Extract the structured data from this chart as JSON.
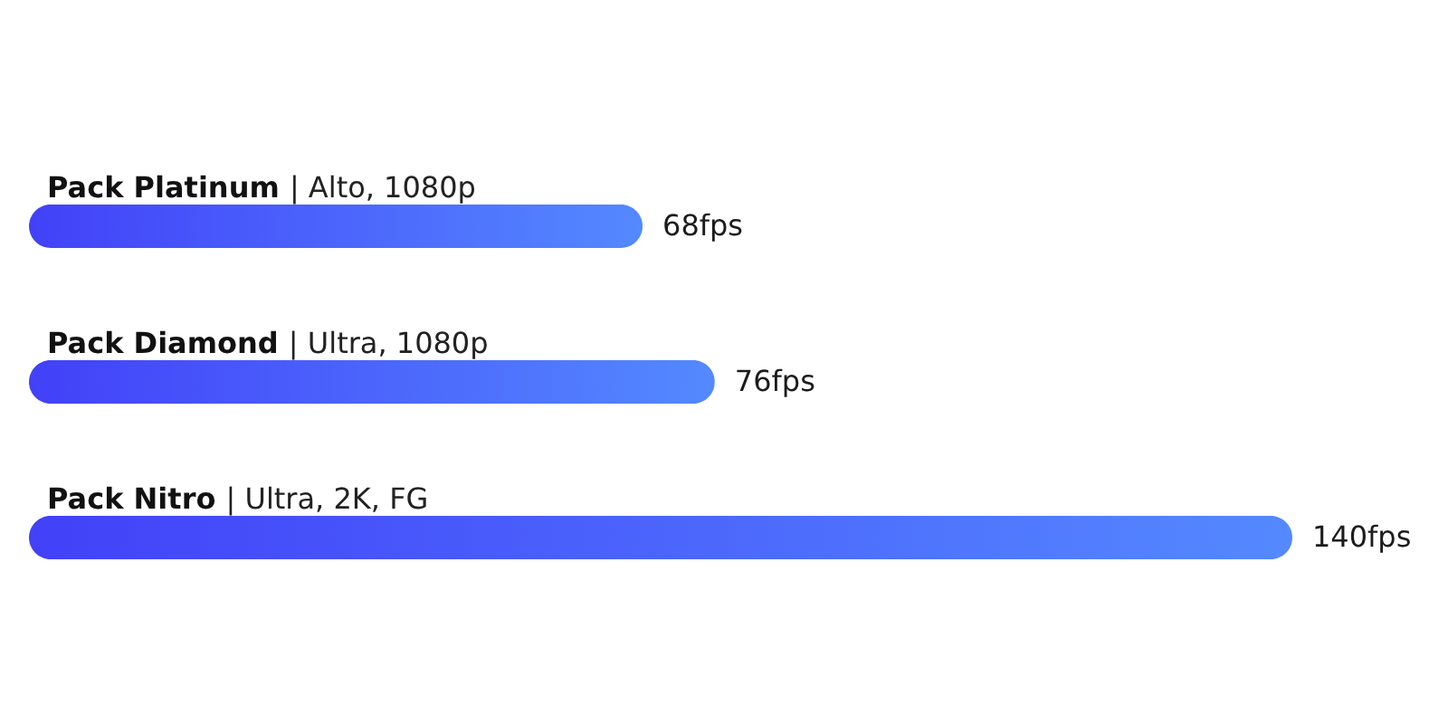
{
  "chart_data": {
    "type": "bar",
    "orientation": "horizontal",
    "categories": [
      "Pack Platinum | Alto, 1080p",
      "Pack Diamond | Ultra, 1080p",
      "Pack Nitro | Ultra, 2K, FG"
    ],
    "values": [
      68,
      76,
      140
    ],
    "color": "#4b65fc",
    "value_labels": [
      "68fps",
      "76fps",
      "140fps"
    ]
  }
}
